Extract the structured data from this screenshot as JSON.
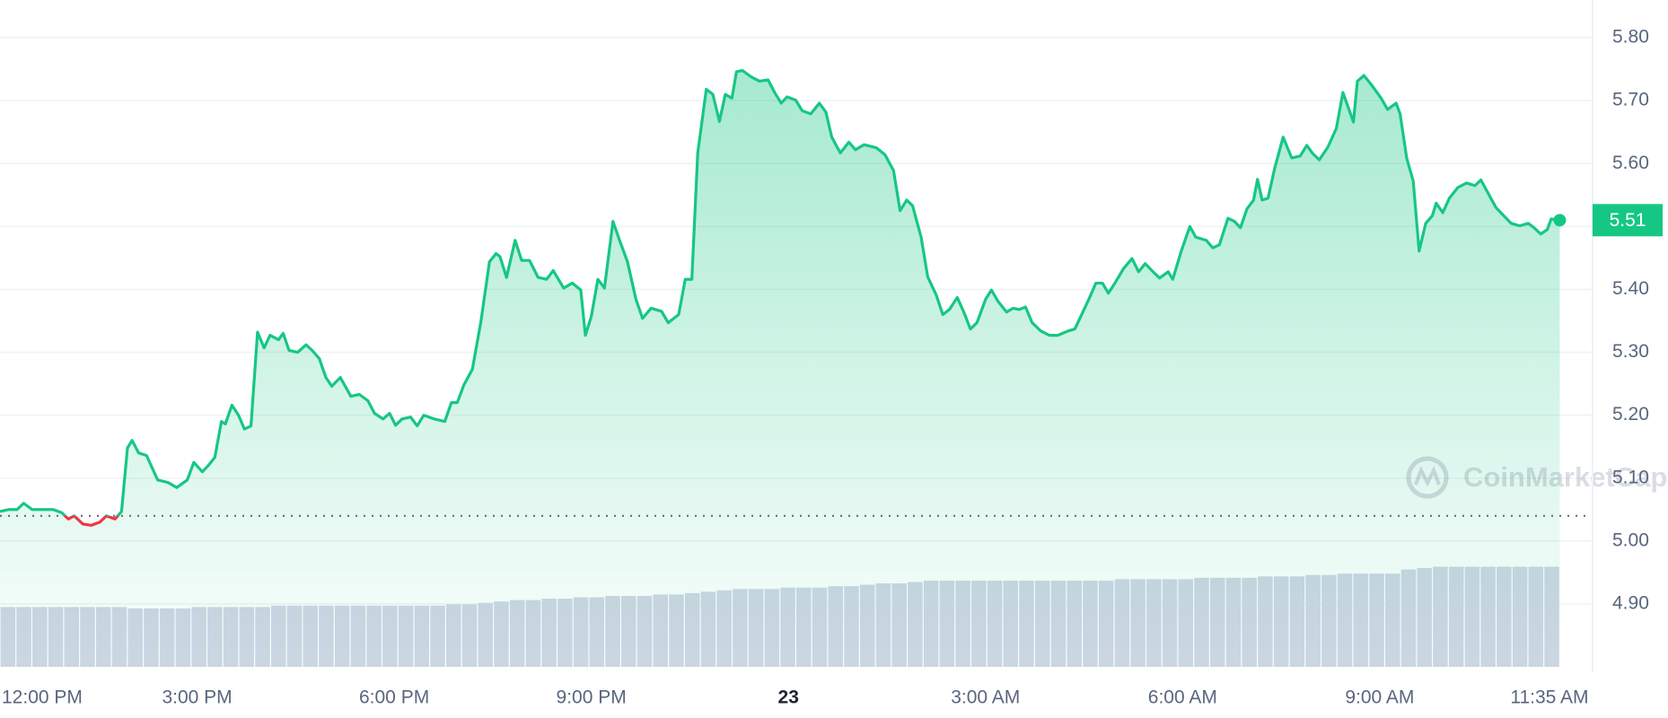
{
  "chart_data": [
    {
      "type": "line",
      "x": [
        12.0,
        12.13,
        12.26,
        12.36,
        12.49,
        12.65,
        12.81,
        12.94,
        13.04,
        13.13,
        13.26,
        13.39,
        13.52,
        13.62,
        13.75,
        13.85,
        13.94,
        14.01,
        14.11,
        14.23,
        14.4,
        14.56,
        14.69,
        14.85,
        14.95,
        15.08,
        15.17,
        15.27,
        15.37,
        15.43,
        15.53,
        15.63,
        15.72,
        15.82,
        15.92,
        16.02,
        16.11,
        16.24,
        16.31,
        16.4,
        16.53,
        16.66,
        16.76,
        16.86,
        16.96,
        17.05,
        17.18,
        17.34,
        17.47,
        17.6,
        17.7,
        17.83,
        17.93,
        18.02,
        18.12,
        18.25,
        18.35,
        18.45,
        18.61,
        18.77,
        18.87,
        18.96,
        19.06,
        19.19,
        19.32,
        19.45,
        19.55,
        19.61,
        19.71,
        19.84,
        19.94,
        20.06,
        20.19,
        20.32,
        20.42,
        20.58,
        20.71,
        20.84,
        20.91,
        21.0,
        21.1,
        21.2,
        21.33,
        21.43,
        21.55,
        21.68,
        21.78,
        21.91,
        22.07,
        22.17,
        22.33,
        22.43,
        22.53,
        22.62,
        22.75,
        22.85,
        22.95,
        23.04,
        23.14,
        23.21,
        23.3,
        23.43,
        23.56,
        23.69,
        23.79,
        23.89,
        23.98,
        24.11,
        24.21,
        24.34,
        24.47,
        24.57,
        24.66,
        24.79,
        24.92,
        25.02,
        25.15,
        25.34,
        25.47,
        25.6,
        25.7,
        25.8,
        25.89,
        26.02,
        26.12,
        26.25,
        26.35,
        26.45,
        26.57,
        26.67,
        26.77,
        26.87,
        27.0,
        27.09,
        27.19,
        27.32,
        27.42,
        27.51,
        27.61,
        27.71,
        27.84,
        27.97,
        28.1,
        28.26,
        28.36,
        28.45,
        28.58,
        28.68,
        28.78,
        28.87,
        28.97,
        29.1,
        29.23,
        29.33,
        29.43,
        29.55,
        29.65,
        29.78,
        29.85,
        29.98,
        30.11,
        30.2,
        30.36,
        30.46,
        30.56,
        30.69,
        30.79,
        30.88,
        30.98,
        31.08,
        31.14,
        31.21,
        31.3,
        31.4,
        31.53,
        31.66,
        31.79,
        31.89,
        31.98,
        32.08,
        32.21,
        32.34,
        32.44,
        32.6,
        32.66,
        32.76,
        32.89,
        33.02,
        33.12,
        33.25,
        33.31,
        33.41,
        33.51,
        33.6,
        33.7,
        33.8,
        33.86,
        33.96,
        34.06,
        34.19,
        34.32,
        34.45,
        34.54,
        34.67,
        34.77,
        34.87,
        35.0,
        35.13,
        35.26,
        35.35,
        35.45,
        35.55,
        35.61,
        35.74
      ],
      "values": [
        5.047,
        5.05,
        5.05,
        5.06,
        5.05,
        5.05,
        5.05,
        5.045,
        5.035,
        5.04,
        5.027,
        5.025,
        5.03,
        5.04,
        5.035,
        5.047,
        5.148,
        5.16,
        5.14,
        5.136,
        5.097,
        5.093,
        5.085,
        5.097,
        5.125,
        5.11,
        5.12,
        5.133,
        5.19,
        5.186,
        5.216,
        5.2,
        5.178,
        5.183,
        5.332,
        5.307,
        5.327,
        5.32,
        5.33,
        5.303,
        5.3,
        5.312,
        5.302,
        5.29,
        5.26,
        5.246,
        5.26,
        5.23,
        5.233,
        5.223,
        5.203,
        5.194,
        5.203,
        5.184,
        5.194,
        5.197,
        5.183,
        5.2,
        5.194,
        5.19,
        5.22,
        5.22,
        5.248,
        5.273,
        5.349,
        5.444,
        5.457,
        5.452,
        5.419,
        5.478,
        5.446,
        5.446,
        5.419,
        5.416,
        5.43,
        5.402,
        5.41,
        5.399,
        5.327,
        5.357,
        5.416,
        5.402,
        5.508,
        5.478,
        5.444,
        5.384,
        5.354,
        5.37,
        5.365,
        5.347,
        5.36,
        5.416,
        5.416,
        5.617,
        5.718,
        5.71,
        5.667,
        5.71,
        5.704,
        5.746,
        5.748,
        5.738,
        5.731,
        5.733,
        5.713,
        5.696,
        5.706,
        5.701,
        5.684,
        5.679,
        5.696,
        5.682,
        5.642,
        5.617,
        5.634,
        5.622,
        5.63,
        5.625,
        5.614,
        5.589,
        5.525,
        5.542,
        5.533,
        5.483,
        5.42,
        5.391,
        5.36,
        5.368,
        5.387,
        5.364,
        5.337,
        5.347,
        5.384,
        5.399,
        5.381,
        5.364,
        5.37,
        5.368,
        5.372,
        5.347,
        5.334,
        5.327,
        5.327,
        5.334,
        5.337,
        5.357,
        5.386,
        5.41,
        5.41,
        5.394,
        5.41,
        5.433,
        5.449,
        5.428,
        5.441,
        5.428,
        5.418,
        5.428,
        5.416,
        5.461,
        5.5,
        5.483,
        5.478,
        5.466,
        5.471,
        5.513,
        5.508,
        5.498,
        5.528,
        5.542,
        5.575,
        5.542,
        5.545,
        5.592,
        5.642,
        5.609,
        5.612,
        5.629,
        5.616,
        5.606,
        5.626,
        5.656,
        5.713,
        5.666,
        5.731,
        5.74,
        5.723,
        5.704,
        5.686,
        5.696,
        5.679,
        5.609,
        5.572,
        5.461,
        5.505,
        5.517,
        5.537,
        5.522,
        5.545,
        5.562,
        5.569,
        5.565,
        5.574,
        5.549,
        5.53,
        5.519,
        5.505,
        5.501,
        5.505,
        5.498,
        5.488,
        5.495,
        5.512,
        5.51
      ],
      "color": "#16c784",
      "down_color": "#ea3943",
      "baseline": 5.04,
      "last_label": "5.51",
      "xlim": [
        12,
        36.24
      ],
      "xticks": [
        {
          "value": 12,
          "label": "12:00 PM"
        },
        {
          "value": 15,
          "label": "3:00 PM"
        },
        {
          "value": 18,
          "label": "6:00 PM"
        },
        {
          "value": 21,
          "label": "9:00 PM"
        },
        {
          "value": 24,
          "label": "23"
        },
        {
          "value": 27,
          "label": "3:00 AM"
        },
        {
          "value": 30,
          "label": "6:00 AM"
        },
        {
          "value": 33,
          "label": "9:00 AM"
        },
        {
          "value": 35.583,
          "label": "11:35 AM"
        }
      ],
      "ylim": [
        4.8,
        5.86
      ],
      "yticks": [
        {
          "value": 4.9,
          "label": "4.90"
        },
        {
          "value": 5.0,
          "label": "5.00"
        },
        {
          "value": 5.1,
          "label": "5.10"
        },
        {
          "value": 5.2,
          "label": "5.20"
        },
        {
          "value": 5.3,
          "label": "5.30"
        },
        {
          "value": 5.4,
          "label": "5.40"
        },
        {
          "value": 5.5,
          "label": "5.50"
        },
        {
          "value": 5.6,
          "label": "5.60"
        },
        {
          "value": 5.7,
          "label": "5.70"
        },
        {
          "value": 5.8,
          "label": "5.80"
        }
      ],
      "grid": true,
      "watermark": "CoinMarketCap"
    },
    {
      "type": "bar",
      "values": [
        43,
        43,
        43,
        43,
        43,
        43,
        43,
        43,
        42,
        42,
        42,
        42,
        43,
        43,
        43,
        43,
        43,
        44,
        44,
        44,
        44,
        44,
        44,
        44,
        44,
        44,
        44,
        44,
        45,
        45,
        46,
        47,
        48,
        48,
        49,
        49,
        50,
        50,
        51,
        51,
        51,
        52,
        52,
        53,
        54,
        55,
        56,
        56,
        56,
        57,
        57,
        57,
        58,
        58,
        59,
        60,
        60,
        61,
        62,
        62,
        62,
        62,
        62,
        62,
        62,
        62,
        62,
        62,
        62,
        62,
        63,
        63,
        63,
        63,
        63,
        64,
        64,
        64,
        64,
        65,
        65,
        65,
        66,
        66,
        67,
        67,
        67,
        67,
        70,
        71,
        72,
        72,
        72,
        72,
        72,
        72,
        72,
        72
      ],
      "color": "#cfd6e4",
      "ylim": [
        0,
        100
      ]
    }
  ]
}
